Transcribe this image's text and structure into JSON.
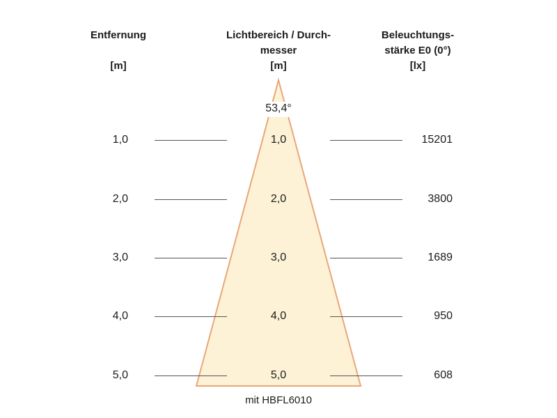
{
  "headers": {
    "distance": [
      "Entfernung",
      "",
      "[m]"
    ],
    "diameter": [
      "Lichtbereich / Durch-",
      "messer",
      "[m]"
    ],
    "illuminance": [
      "Beleuchtungs-",
      "stärke E0 (0°)",
      "[lx]"
    ]
  },
  "beam_angle": "53,4°",
  "rows": [
    {
      "distance": "1,0",
      "diameter": "1,0",
      "illuminance": "15201"
    },
    {
      "distance": "2,0",
      "diameter": "2,0",
      "illuminance": "3800"
    },
    {
      "distance": "3,0",
      "diameter": "3,0",
      "illuminance": "1689"
    },
    {
      "distance": "4,0",
      "diameter": "4,0",
      "illuminance": "950"
    },
    {
      "distance": "5,0",
      "diameter": "5,0",
      "illuminance": "608"
    }
  ],
  "footer": "mit HBFL6010",
  "colors": {
    "cone_fill": "#fdf1d6",
    "cone_stroke": "#e8a77a",
    "rule": "#555555"
  }
}
